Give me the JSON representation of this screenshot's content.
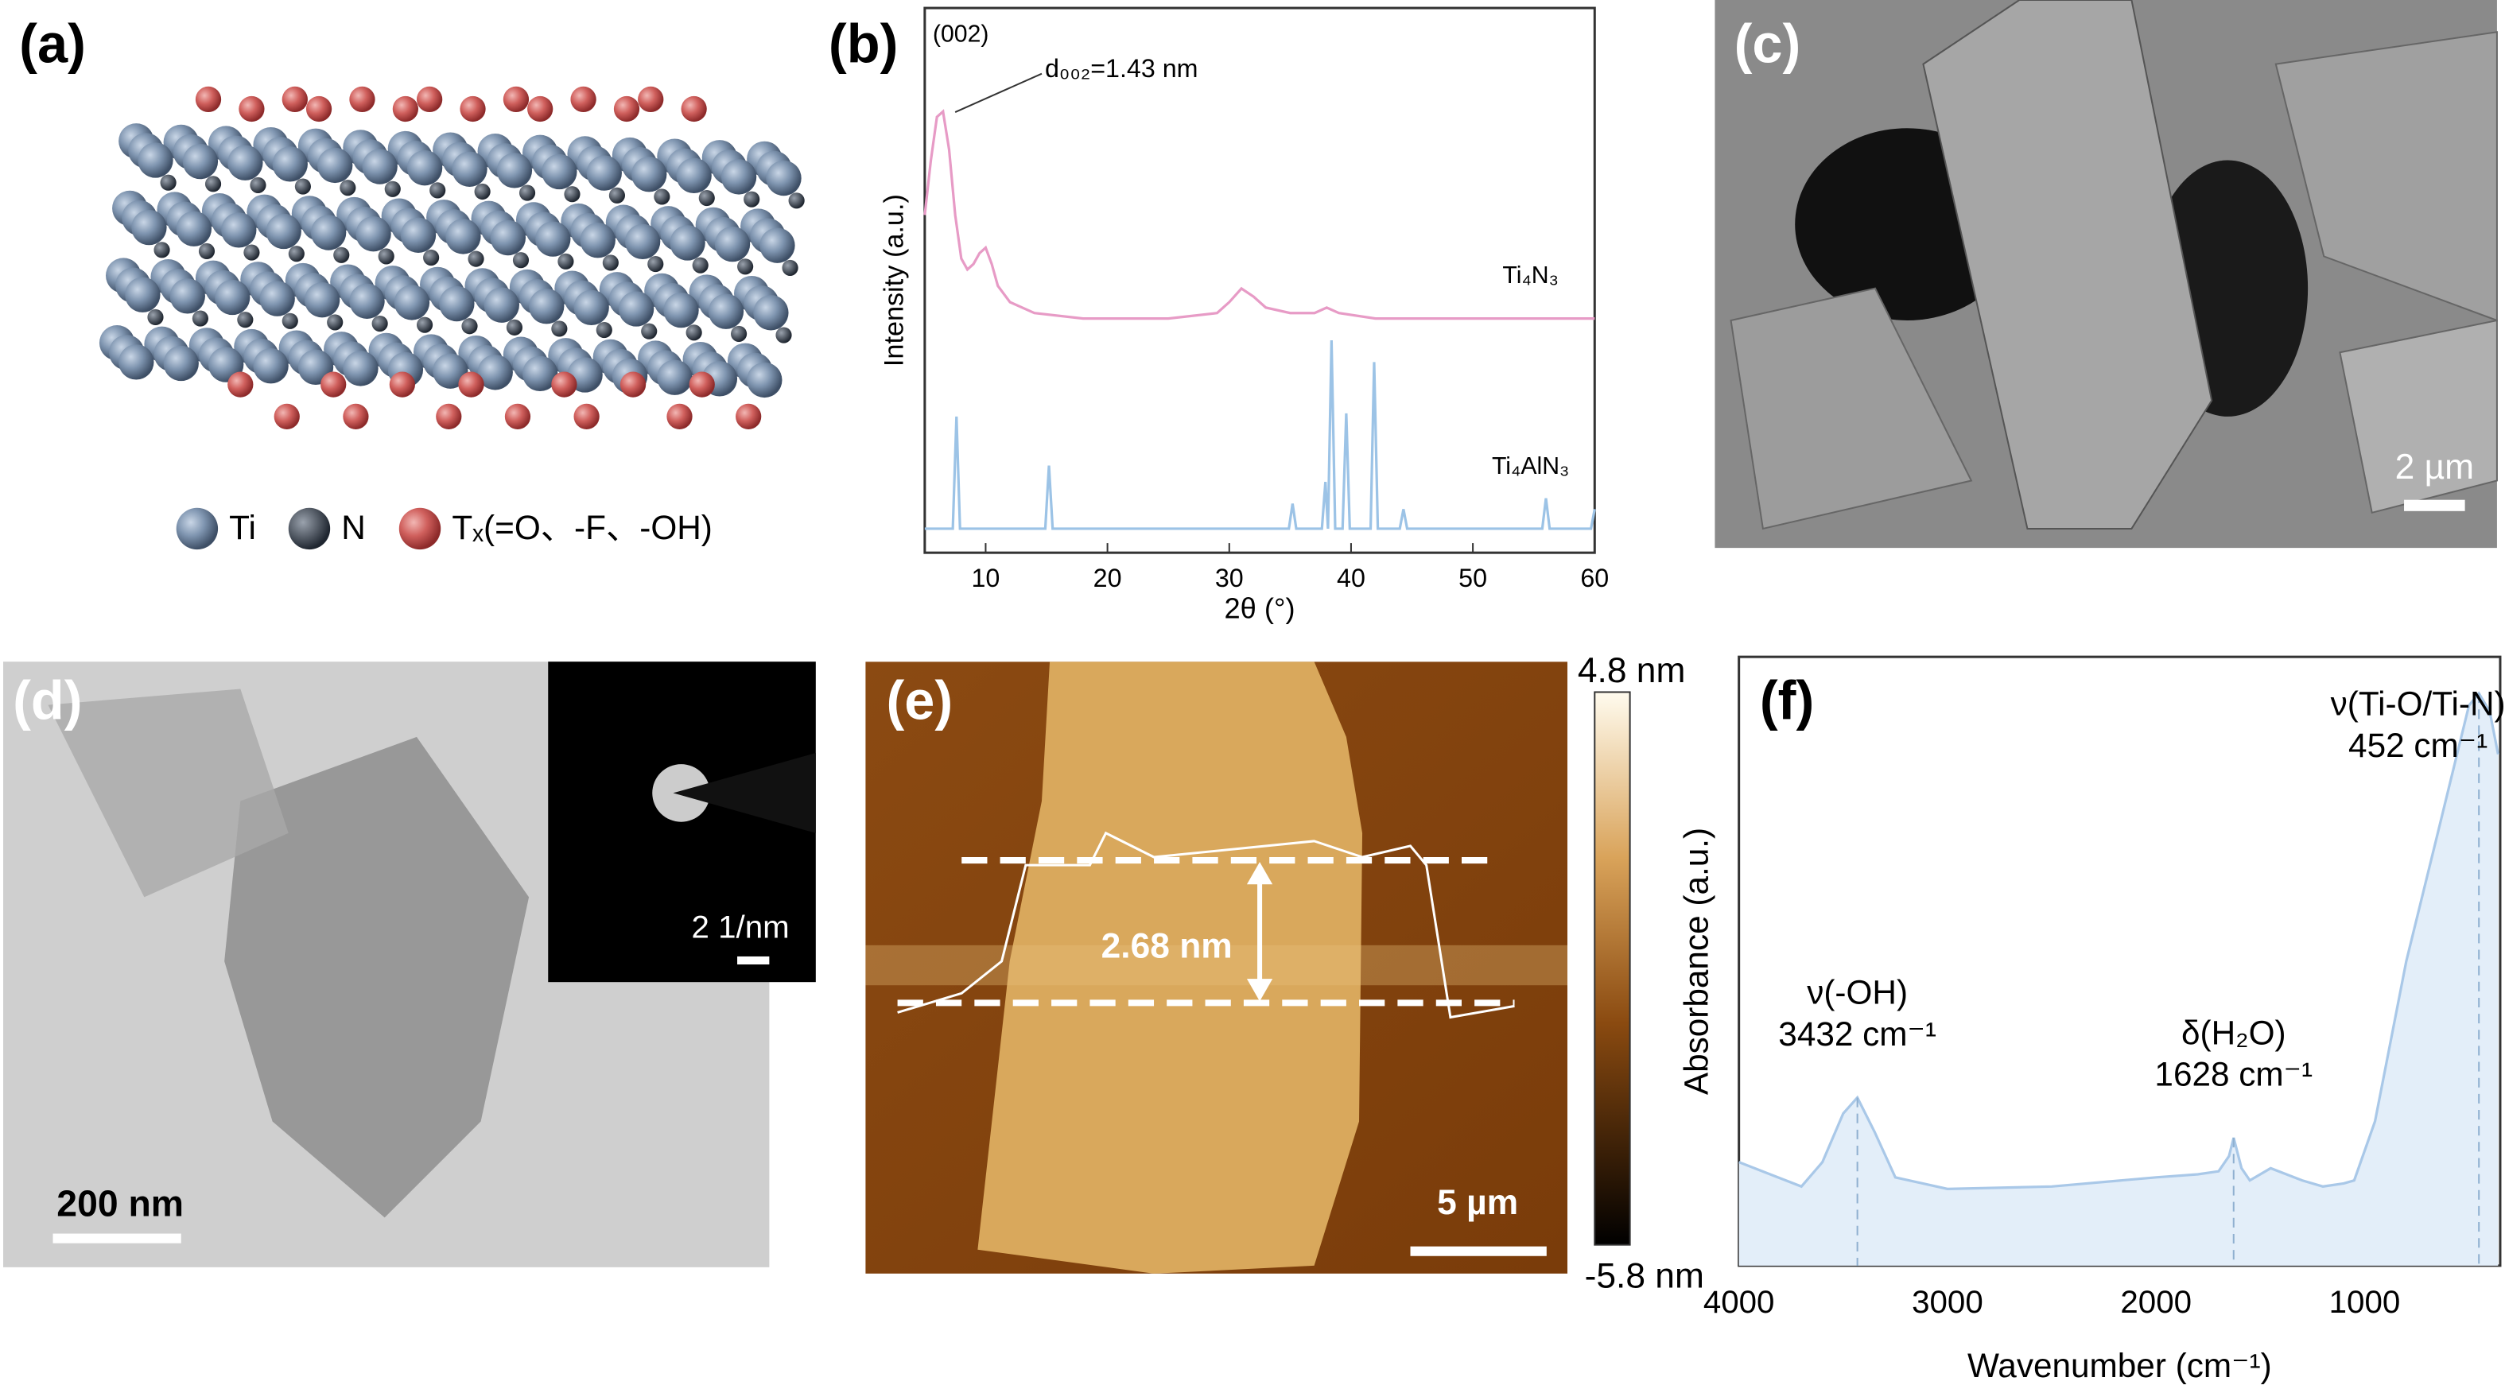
{
  "chart_data": [
    {
      "type": "line",
      "label": "(b)",
      "xlabel": "2θ (°)",
      "ylabel": "Intensity (a.u.)",
      "xlim": [
        5,
        60
      ],
      "xticks": [
        10,
        20,
        30,
        40,
        50,
        60
      ],
      "ylim": [
        0,
        100
      ],
      "annotations": [
        "(002)",
        "d₀₀₂=1.43 nm"
      ],
      "series": [
        {
          "name": "Ti₄N₃",
          "color": "#e79bc6",
          "x": [
            5,
            5.5,
            6,
            6.5,
            7,
            7.5,
            8,
            8.5,
            9,
            9.5,
            10,
            10.5,
            11,
            12,
            14,
            18,
            25,
            29,
            30,
            31,
            32,
            33,
            35,
            37,
            38,
            39,
            42,
            50,
            60
          ],
          "values": [
            62,
            72,
            80,
            81,
            74,
            62,
            54,
            52,
            53,
            55,
            56,
            53,
            49,
            46,
            44,
            43,
            43,
            44,
            46,
            48.5,
            47,
            45,
            44,
            44,
            45,
            44,
            43,
            43,
            43
          ]
        },
        {
          "name": "Ti₄AlN₃",
          "color": "#9cc3e6",
          "x": [
            5,
            7.3,
            7.6,
            7.9,
            14.9,
            15.2,
            15.5,
            30,
            34.9,
            35.2,
            35.5,
            36.5,
            37.6,
            37.9,
            38.1,
            38.4,
            38.7,
            39.3,
            39.6,
            39.9,
            41.6,
            41.9,
            42.2,
            44,
            44.3,
            44.6,
            55.7,
            56,
            56.3,
            59.7,
            60
          ],
          "values": [
            4.4,
            4.4,
            25,
            4.4,
            4.4,
            16,
            4.4,
            4.4,
            4.4,
            9,
            4.4,
            4.4,
            4.4,
            13,
            4.4,
            39,
            4.4,
            4.4,
            25.6,
            4.4,
            4.4,
            35,
            4.4,
            4.4,
            8,
            4.4,
            4.4,
            10,
            4.4,
            4.4,
            8
          ]
        }
      ]
    },
    {
      "type": "line",
      "fill_area": true,
      "label": "(f)",
      "xlabel": "Wavenumber (cm⁻¹)",
      "ylabel": "Absorbance (a.u.)",
      "xlim": [
        4000,
        350
      ],
      "xticks": [
        4000,
        3000,
        2000,
        1000
      ],
      "ylim": [
        0,
        100
      ],
      "series": [
        {
          "color": "#a9c8e8",
          "x": [
            4000,
            3850,
            3700,
            3600,
            3500,
            3432,
            3350,
            3250,
            3000,
            2500,
            2000,
            1800,
            1700,
            1650,
            1628,
            1590,
            1550,
            1450,
            1300,
            1200,
            1100,
            1050,
            950,
            800,
            650,
            500,
            452,
            400,
            360
          ],
          "values": [
            17,
            15,
            13,
            17,
            25,
            27.6,
            22,
            14.5,
            12.6,
            13,
            14.5,
            15,
            15.5,
            18,
            21,
            16,
            14,
            16,
            14,
            13,
            13.5,
            14,
            23.7,
            50,
            71,
            92,
            94,
            91,
            84
          ]
        }
      ],
      "annotations": [
        {
          "x": 3432,
          "label": "ν(-OH)",
          "sublabel": "3432 cm⁻¹"
        },
        {
          "x": 1628,
          "label": "δ(H₂O)",
          "sublabel": "1628 cm⁻¹"
        },
        {
          "x": 452,
          "label": "ν(Ti-O/Ti-N)",
          "sublabel": "452 cm⁻¹"
        }
      ]
    }
  ],
  "panels": {
    "a": {
      "label": "(a)",
      "legend": [
        "Ti",
        "N",
        "Tₓ(=O、-F、-OH)"
      ]
    },
    "c": {
      "label": "(c)",
      "scale_bar": "2 µm"
    },
    "d": {
      "label": "(d)",
      "scale_bar": "200 nm",
      "inset_scale_bar": "2 1/nm"
    },
    "e": {
      "label": "(e)",
      "scale_bar": "5 µm",
      "height_label": "2.68 nm",
      "colorbar_max": "4.8 nm",
      "colorbar_min": "-5.8 nm"
    }
  }
}
